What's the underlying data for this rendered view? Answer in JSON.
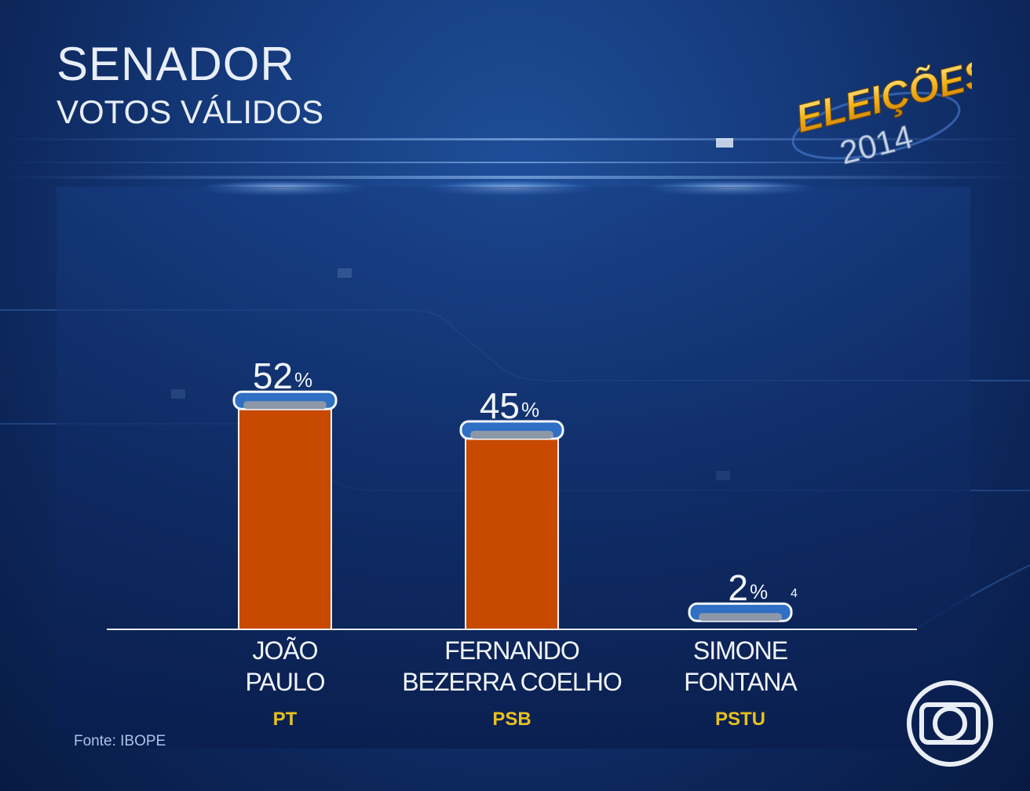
{
  "header": {
    "title": "SENADOR",
    "subtitle": "VOTOS VÁLIDOS"
  },
  "logo": {
    "word": "ELEIÇÕES",
    "year": "2014",
    "broadcaster_icon": "globo-logo-icon"
  },
  "colors": {
    "bar": "#c74a00",
    "cap": "#2f6fc4",
    "party_label": "#e8c020",
    "text": "#f2f6fc"
  },
  "chart_data": {
    "type": "bar",
    "categories": [
      "JOÃO PAULO",
      "FERNANDO BEZERRA COELHO",
      "SIMONE FONTANA"
    ],
    "category_lines": [
      [
        "JOÃO",
        "PAULO"
      ],
      [
        "FERNANDO",
        "BEZERRA COELHO"
      ],
      [
        "SIMONE",
        "FONTANA"
      ]
    ],
    "parties": [
      "PT",
      "PSB",
      "PSTU"
    ],
    "values": [
      52,
      45,
      2
    ],
    "value_labels": [
      "52",
      "45",
      "2"
    ],
    "unit": "%",
    "footnote_marker": "4",
    "ylim": [
      0,
      60
    ],
    "grid": false,
    "source": "Fonte: IBOPE"
  }
}
